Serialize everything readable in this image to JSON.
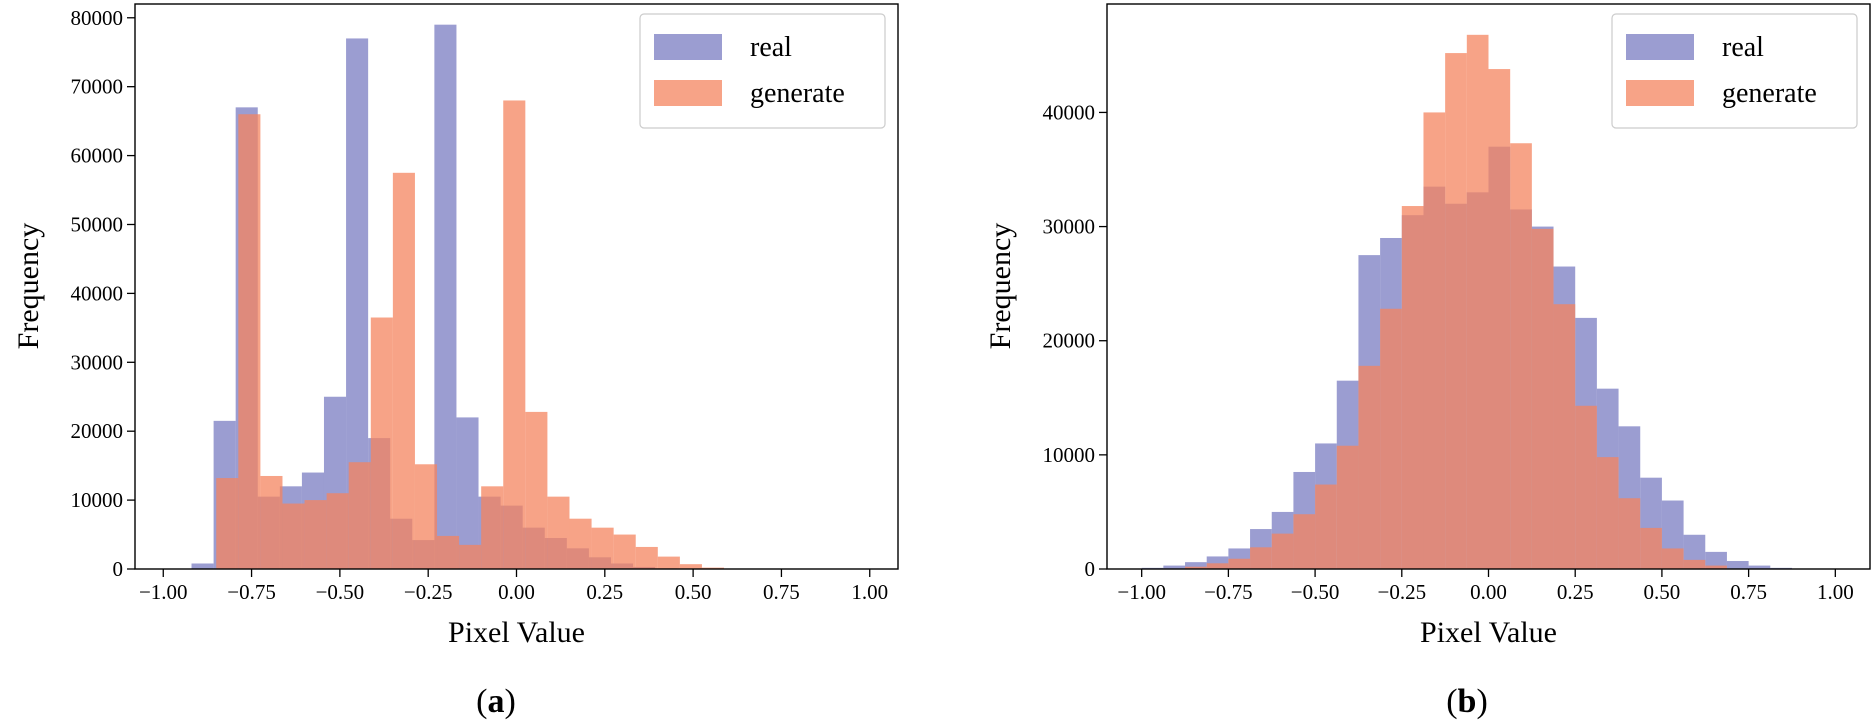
{
  "figure": {
    "panels": [
      {
        "label_open": "(",
        "label_letter": "a",
        "label_close": ")"
      },
      {
        "label_open": "(",
        "label_letter": "b",
        "label_close": ")"
      }
    ]
  },
  "chart_data": [
    {
      "type": "bar",
      "histogram": true,
      "title": "",
      "xlabel": "Pixel Value",
      "ylabel": "Frequency",
      "xlim": [
        -1.08,
        1.08
      ],
      "ylim": [
        0,
        82000
      ],
      "xticks": [
        -1.0,
        -0.75,
        -0.5,
        -0.25,
        0.0,
        0.25,
        0.5,
        0.75,
        1.0
      ],
      "xtick_labels": [
        "−1.00",
        "−0.75",
        "−0.50",
        "−0.25",
        "0.00",
        "0.25",
        "0.50",
        "0.75",
        "1.00"
      ],
      "yticks": [
        0,
        10000,
        20000,
        30000,
        40000,
        50000,
        60000,
        70000,
        80000
      ],
      "ytick_labels": [
        "0",
        "10000",
        "20000",
        "30000",
        "40000",
        "50000",
        "60000",
        "70000",
        "80000"
      ],
      "legend_position": "top-right",
      "grid": false,
      "series": [
        {
          "name": "real",
          "color": "#7a7cc2",
          "opacity": 0.75,
          "bin_start": -0.92,
          "bin_width": 0.0625,
          "values": [
            800,
            21500,
            67000,
            10500,
            12000,
            14000,
            25000,
            77000,
            19000,
            7300,
            4200,
            79000,
            22000,
            10500,
            9200,
            6000,
            4500,
            3000,
            1700,
            800,
            300,
            100,
            0
          ]
        },
        {
          "name": "generate",
          "color": "#f4845f",
          "opacity": 0.75,
          "bin_start": -0.85,
          "bin_width": 0.0625,
          "values": [
            13200,
            66000,
            13500,
            9500,
            10000,
            11000,
            15500,
            36500,
            57500,
            15200,
            4800,
            3500,
            12000,
            68000,
            22800,
            10500,
            7300,
            6000,
            5000,
            3200,
            1800,
            700,
            200
          ]
        }
      ]
    },
    {
      "type": "bar",
      "histogram": true,
      "title": "",
      "xlabel": "Pixel Value",
      "ylabel": "Frequency",
      "xlim": [
        -1.1,
        1.1
      ],
      "ylim": [
        0,
        49500
      ],
      "xticks": [
        -1.0,
        -0.75,
        -0.5,
        -0.25,
        0.0,
        0.25,
        0.5,
        0.75,
        1.0
      ],
      "xtick_labels": [
        "−1.00",
        "−0.75",
        "−0.50",
        "−0.25",
        "0.00",
        "0.25",
        "0.50",
        "0.75",
        "1.00"
      ],
      "yticks": [
        0,
        10000,
        20000,
        30000,
        40000
      ],
      "ytick_labels": [
        "0",
        "10000",
        "20000",
        "30000",
        "40000"
      ],
      "legend_position": "top-right",
      "grid": false,
      "series": [
        {
          "name": "real",
          "color": "#7a7cc2",
          "opacity": 0.75,
          "bin_start": -1.0,
          "bin_width": 0.0625,
          "values": [
            100,
            300,
            600,
            1100,
            1800,
            3500,
            5000,
            8500,
            11000,
            16500,
            27500,
            29000,
            31000,
            33500,
            32000,
            33000,
            37000,
            31500,
            30000,
            26500,
            22000,
            15800,
            12500,
            8000,
            6000,
            3000,
            1500,
            700,
            300,
            100
          ]
        },
        {
          "name": "generate",
          "color": "#f4845f",
          "opacity": 0.75,
          "bin_start": -0.875,
          "bin_width": 0.0625,
          "values": [
            200,
            500,
            900,
            1900,
            3100,
            4800,
            7400,
            10800,
            17800,
            22800,
            31800,
            40000,
            45200,
            46800,
            43800,
            37300,
            29800,
            23200,
            14300,
            9800,
            6200,
            3600,
            1800,
            800,
            300
          ]
        }
      ]
    }
  ]
}
